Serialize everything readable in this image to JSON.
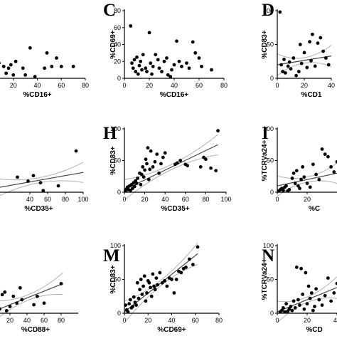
{
  "figure": {
    "colors": {
      "point": "#000000",
      "fit": "#444444",
      "ci": "#b0b0b0",
      "axis": "#000000"
    }
  },
  "chart_data": [
    {
      "type": "scatter",
      "panel": "",
      "xlabel": "%CD16+",
      "ylabel": "",
      "xlim": [
        0,
        80
      ],
      "ylim": [
        0,
        80
      ],
      "xticks": [
        "20",
        "40",
        "60",
        "80"
      ],
      "yticks": [],
      "regression": false,
      "points": [
        [
          0,
          62
        ],
        [
          2,
          18
        ],
        [
          4,
          12
        ],
        [
          8,
          18
        ],
        [
          12,
          14
        ],
        [
          14,
          6
        ],
        [
          16,
          12
        ],
        [
          18,
          16
        ],
        [
          20,
          4
        ],
        [
          22,
          20
        ],
        [
          28,
          12
        ],
        [
          30,
          4
        ],
        [
          34,
          36
        ],
        [
          38,
          2
        ],
        [
          46,
          12
        ],
        [
          48,
          30
        ],
        [
          52,
          14
        ],
        [
          56,
          24
        ],
        [
          60,
          14
        ],
        [
          70,
          14
        ]
      ]
    },
    {
      "type": "scatter",
      "panel": "C",
      "xlabel": "%CD16+",
      "ylabel": "%CD69+",
      "xlim": [
        0,
        80
      ],
      "ylim": [
        0,
        80
      ],
      "xticks": [
        "0",
        "20",
        "40",
        "60",
        "80"
      ],
      "yticks": [
        "0",
        "20",
        "40",
        "60",
        "80"
      ],
      "regression": false,
      "points": [
        [
          5,
          62
        ],
        [
          6,
          18
        ],
        [
          7,
          12
        ],
        [
          8,
          22
        ],
        [
          9,
          8
        ],
        [
          10,
          25
        ],
        [
          11,
          5
        ],
        [
          12,
          15
        ],
        [
          13,
          20
        ],
        [
          14,
          10
        ],
        [
          15,
          28
        ],
        [
          17,
          12
        ],
        [
          18,
          8
        ],
        [
          20,
          54
        ],
        [
          21,
          18
        ],
        [
          22,
          5
        ],
        [
          23,
          14
        ],
        [
          25,
          28
        ],
        [
          27,
          22
        ],
        [
          28,
          12
        ],
        [
          30,
          8
        ],
        [
          32,
          20
        ],
        [
          34,
          24
        ],
        [
          35,
          4
        ],
        [
          37,
          2
        ],
        [
          38,
          10
        ],
        [
          40,
          16
        ],
        [
          42,
          44
        ],
        [
          44,
          20
        ],
        [
          46,
          14
        ],
        [
          50,
          18
        ],
        [
          52,
          12
        ],
        [
          55,
          43
        ],
        [
          57,
          30
        ],
        [
          60,
          24
        ],
        [
          62,
          14
        ],
        [
          70,
          10
        ]
      ]
    },
    {
      "type": "scatter",
      "panel": "D",
      "xlabel": "%CD1",
      "ylabel": "%CD83+",
      "xlim": [
        0,
        40
      ],
      "ylim": [
        0,
        100
      ],
      "xticks": [
        "0",
        "20",
        "40"
      ],
      "yticks": [
        "0",
        "50",
        "100"
      ],
      "regression": true,
      "fit": [
        [
          0,
          20
        ],
        [
          40,
          33
        ]
      ],
      "points": [
        [
          2,
          98
        ],
        [
          3,
          20
        ],
        [
          4,
          10
        ],
        [
          5,
          28
        ],
        [
          6,
          8
        ],
        [
          8,
          18
        ],
        [
          9,
          24
        ],
        [
          10,
          14
        ],
        [
          12,
          30
        ],
        [
          14,
          4
        ],
        [
          16,
          10
        ],
        [
          17,
          50
        ],
        [
          18,
          22
        ],
        [
          20,
          38
        ],
        [
          22,
          16
        ],
        [
          24,
          54
        ],
        [
          25,
          26
        ],
        [
          26,
          65
        ],
        [
          28,
          18
        ],
        [
          30,
          52
        ],
        [
          32,
          60
        ],
        [
          34,
          40
        ],
        [
          36,
          30
        ],
        [
          38,
          20
        ]
      ]
    },
    {
      "type": "scatter",
      "panel": "",
      "xlabel": "%CD35+",
      "ylabel": "",
      "xlim": [
        0,
        100
      ],
      "ylim": [
        0,
        80
      ],
      "xticks": [
        "40",
        "60",
        "80",
        "100"
      ],
      "yticks": [],
      "regression": true,
      "fit": [
        [
          0,
          5
        ],
        [
          100,
          25
        ]
      ],
      "points": [
        [
          26,
          19
        ],
        [
          38,
          14
        ],
        [
          44,
          21
        ],
        [
          52,
          12
        ],
        [
          55,
          2
        ],
        [
          72,
          8
        ],
        [
          92,
          52
        ]
      ]
    },
    {
      "type": "scatter",
      "panel": "H",
      "xlabel": "%CD35+",
      "ylabel": "%CD83+",
      "xlim": [
        0,
        100
      ],
      "ylim": [
        0,
        100
      ],
      "xticks": [
        "0",
        "20",
        "40",
        "60",
        "80",
        "100"
      ],
      "yticks": [
        "0",
        "50",
        "100"
      ],
      "regression": true,
      "fit": [
        [
          0,
          4
        ],
        [
          92,
          75
        ]
      ],
      "points": [
        [
          1,
          2
        ],
        [
          2,
          5
        ],
        [
          3,
          8
        ],
        [
          4,
          4
        ],
        [
          5,
          10
        ],
        [
          6,
          3
        ],
        [
          7,
          12
        ],
        [
          8,
          6
        ],
        [
          9,
          15
        ],
        [
          10,
          9
        ],
        [
          11,
          18
        ],
        [
          12,
          14
        ],
        [
          13,
          22
        ],
        [
          15,
          30
        ],
        [
          16,
          12
        ],
        [
          17,
          28
        ],
        [
          18,
          40
        ],
        [
          19,
          24
        ],
        [
          20,
          35
        ],
        [
          21,
          52
        ],
        [
          22,
          45
        ],
        [
          23,
          70
        ],
        [
          24,
          20
        ],
        [
          25,
          36
        ],
        [
          26,
          65
        ],
        [
          28,
          40
        ],
        [
          30,
          48
        ],
        [
          32,
          60
        ],
        [
          34,
          30
        ],
        [
          36,
          45
        ],
        [
          38,
          55
        ],
        [
          40,
          62
        ],
        [
          50,
          44
        ],
        [
          52,
          46
        ],
        [
          55,
          50
        ],
        [
          60,
          44
        ],
        [
          62,
          42
        ],
        [
          75,
          40
        ],
        [
          78,
          55
        ],
        [
          80,
          52
        ],
        [
          85,
          38
        ],
        [
          90,
          34
        ],
        [
          92,
          97
        ]
      ]
    },
    {
      "type": "scatter",
      "panel": "I",
      "xlabel": "%C",
      "ylabel": "%TCRVa24+",
      "xlim": [
        0,
        40
      ],
      "ylim": [
        0,
        100
      ],
      "xticks": [
        "0",
        "20"
      ],
      "yticks": [
        "0",
        "50",
        "100"
      ],
      "regression": true,
      "fit": [
        [
          0,
          10
        ],
        [
          40,
          30
        ]
      ],
      "points": [
        [
          1,
          2
        ],
        [
          2,
          4
        ],
        [
          3,
          6
        ],
        [
          4,
          3
        ],
        [
          5,
          8
        ],
        [
          6,
          10
        ],
        [
          7,
          2
        ],
        [
          8,
          4
        ],
        [
          10,
          22
        ],
        [
          11,
          30
        ],
        [
          12,
          14
        ],
        [
          13,
          34
        ],
        [
          14,
          10
        ],
        [
          15,
          6
        ],
        [
          16,
          20
        ],
        [
          17,
          40
        ],
        [
          18,
          24
        ],
        [
          20,
          14
        ],
        [
          22,
          8
        ],
        [
          24,
          44
        ],
        [
          26,
          28
        ],
        [
          28,
          20
        ],
        [
          30,
          68
        ],
        [
          32,
          60
        ],
        [
          34,
          56
        ],
        [
          36,
          40
        ],
        [
          38,
          32
        ],
        [
          40,
          48
        ]
      ]
    },
    {
      "type": "scatter",
      "panel": "",
      "xlabel": "%CD88+",
      "ylabel": "",
      "xlim": [
        0,
        100
      ],
      "ylim": [
        0,
        80
      ],
      "xticks": [
        "20",
        "40",
        "60",
        "80"
      ],
      "yticks": [],
      "regression": true,
      "fit": [
        [
          0,
          2
        ],
        [
          82,
          35
        ]
      ],
      "points": [
        [
          5,
          55
        ],
        [
          8,
          5
        ],
        [
          11,
          22
        ],
        [
          14,
          25
        ],
        [
          16,
          3
        ],
        [
          20,
          8
        ],
        [
          24,
          20
        ],
        [
          28,
          12
        ],
        [
          32,
          30
        ],
        [
          34,
          16
        ],
        [
          48,
          10
        ],
        [
          52,
          20
        ],
        [
          60,
          12
        ],
        [
          80,
          35
        ]
      ]
    },
    {
      "type": "scatter",
      "panel": "M",
      "xlabel": "%CD69+",
      "ylabel": "%CD83+",
      "xlim": [
        0,
        80
      ],
      "ylim": [
        0,
        100
      ],
      "xticks": [
        "0",
        "20",
        "40",
        "60",
        "80"
      ],
      "yticks": [
        "0",
        "50",
        "100"
      ],
      "regression": true,
      "fit": [
        [
          0,
          2
        ],
        [
          62,
          88
        ]
      ],
      "points": [
        [
          1,
          12
        ],
        [
          2,
          5
        ],
        [
          3,
          2
        ],
        [
          4,
          14
        ],
        [
          5,
          20
        ],
        [
          6,
          8
        ],
        [
          7,
          10
        ],
        [
          8,
          24
        ],
        [
          9,
          16
        ],
        [
          10,
          12
        ],
        [
          11,
          45
        ],
        [
          12,
          22
        ],
        [
          13,
          35
        ],
        [
          14,
          50
        ],
        [
          15,
          28
        ],
        [
          16,
          40
        ],
        [
          17,
          55
        ],
        [
          18,
          18
        ],
        [
          19,
          30
        ],
        [
          20,
          48
        ],
        [
          21,
          45
        ],
        [
          22,
          38
        ],
        [
          23,
          25
        ],
        [
          24,
          58
        ],
        [
          25,
          40
        ],
        [
          26,
          35
        ],
        [
          27,
          52
        ],
        [
          28,
          42
        ],
        [
          30,
          60
        ],
        [
          32,
          45
        ],
        [
          34,
          48
        ],
        [
          36,
          40
        ],
        [
          38,
          52
        ],
        [
          40,
          50
        ],
        [
          42,
          30
        ],
        [
          44,
          50
        ],
        [
          46,
          62
        ],
        [
          48,
          60
        ],
        [
          50,
          66
        ],
        [
          52,
          68
        ],
        [
          55,
          80
        ],
        [
          58,
          72
        ],
        [
          62,
          98
        ]
      ]
    },
    {
      "type": "scatter",
      "panel": "N",
      "xlabel": "%CD",
      "ylabel": "%TCRVa24+",
      "xlim": [
        0,
        40
      ],
      "ylim": [
        0,
        100
      ],
      "xticks": [
        "0",
        "20",
        "40"
      ],
      "yticks": [
        "0",
        "50",
        "100"
      ],
      "regression": true,
      "fit": [
        [
          0,
          2
        ],
        [
          40,
          38
        ]
      ],
      "points": [
        [
          2,
          2
        ],
        [
          3,
          4
        ],
        [
          4,
          8
        ],
        [
          5,
          2
        ],
        [
          6,
          14
        ],
        [
          7,
          3
        ],
        [
          8,
          6
        ],
        [
          9,
          10
        ],
        [
          10,
          4
        ],
        [
          11,
          18
        ],
        [
          12,
          8
        ],
        [
          13,
          68
        ],
        [
          14,
          20
        ],
        [
          15,
          12
        ],
        [
          16,
          66
        ],
        [
          17,
          28
        ],
        [
          18,
          6
        ],
        [
          19,
          60
        ],
        [
          20,
          14
        ],
        [
          21,
          40
        ],
        [
          22,
          22
        ],
        [
          23,
          30
        ],
        [
          24,
          4
        ],
        [
          25,
          10
        ],
        [
          26,
          36
        ],
        [
          28,
          20
        ],
        [
          30,
          12
        ],
        [
          32,
          26
        ],
        [
          34,
          52
        ],
        [
          36,
          18
        ],
        [
          38,
          30
        ],
        [
          40,
          44
        ]
      ]
    }
  ]
}
